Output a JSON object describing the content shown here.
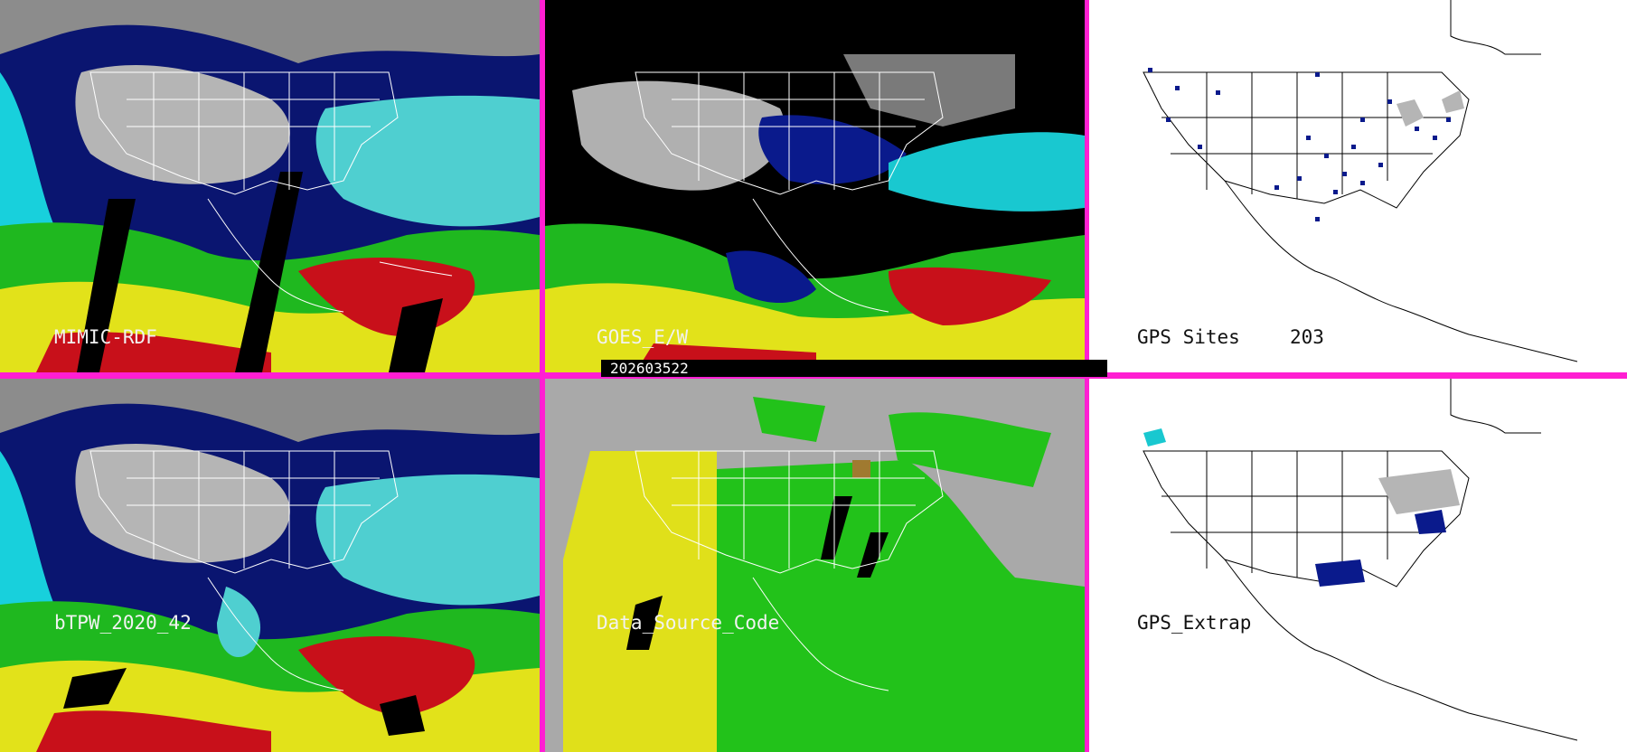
{
  "timestamp": "202603522",
  "panels": {
    "mimic": {
      "label": "MIMIC-RDF"
    },
    "goes": {
      "label": "GOES_E/W"
    },
    "gps_sites": {
      "label": "GPS Sites",
      "count": "203"
    },
    "btpw": {
      "label": "bTPW_2020_42"
    },
    "data_source": {
      "label": "Data_Source_Code"
    },
    "gps_extrap": {
      "label": "GPS_Extrap"
    }
  },
  "colors": {
    "panel_border": "#ff1fd2",
    "moisture_dry": "#9a9a9a",
    "moisture_low": "#0a1a8c",
    "moisture_mid": "#19d6e0",
    "moisture_high": "#1fb81f",
    "moisture_higher": "#e2e21a",
    "moisture_max": "#c8101a",
    "source_yellow": "#e0e01a",
    "source_green": "#22c21a"
  }
}
